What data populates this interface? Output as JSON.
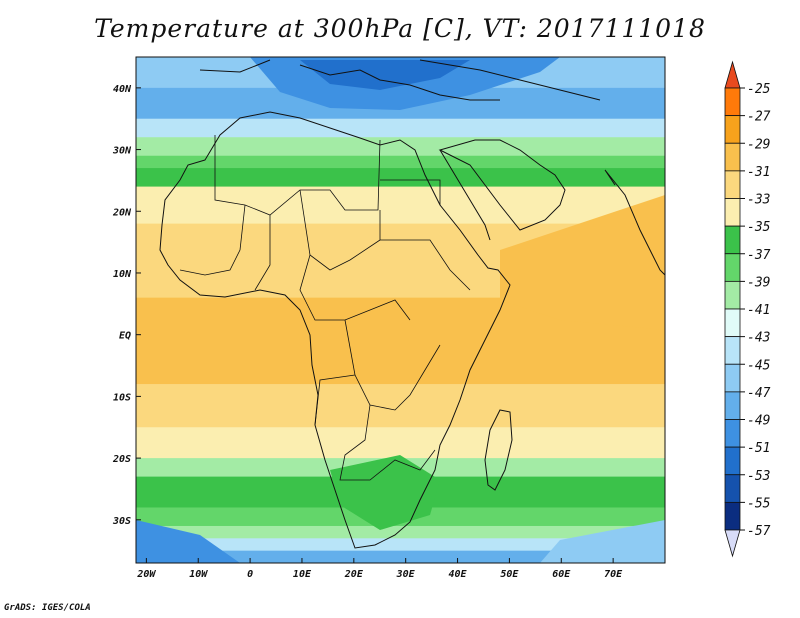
{
  "title": "Temperature at 300hPa [C], VT: 2017111018",
  "credit": "GrADS: IGES/COLA",
  "map": {
    "lon_range": [
      -22,
      80
    ],
    "lat_range": [
      -37,
      45
    ],
    "lon_ticks": [
      {
        "lon": -20,
        "label": "20W"
      },
      {
        "lon": -10,
        "label": "10W"
      },
      {
        "lon": 0,
        "label": "0"
      },
      {
        "lon": 10,
        "label": "10E"
      },
      {
        "lon": 20,
        "label": "20E"
      },
      {
        "lon": 30,
        "label": "30E"
      },
      {
        "lon": 40,
        "label": "40E"
      },
      {
        "lon": 50,
        "label": "50E"
      },
      {
        "lon": 60,
        "label": "60E"
      },
      {
        "lon": 70,
        "label": "70E"
      }
    ],
    "lat_ticks": [
      {
        "lat": 40,
        "label": "40N"
      },
      {
        "lat": 30,
        "label": "30N"
      },
      {
        "lat": 20,
        "label": "20N"
      },
      {
        "lat": 10,
        "label": "10N"
      },
      {
        "lat": 0,
        "label": "EQ"
      },
      {
        "lat": -10,
        "label": "10S"
      },
      {
        "lat": -20,
        "label": "20S"
      },
      {
        "lat": -30,
        "label": "30S"
      }
    ]
  },
  "colorbar": {
    "labels": [
      "-25",
      "-27",
      "-29",
      "-31",
      "-33",
      "-35",
      "-37",
      "-39",
      "-41",
      "-43",
      "-45",
      "-47",
      "-49",
      "-51",
      "-53",
      "-55",
      "-57"
    ],
    "colors": [
      "#e84a1f",
      "#ff7a0a",
      "#f7a21c",
      "#f9c04d",
      "#fbd87e",
      "#fbeeb0",
      "#3bc24a",
      "#63d66a",
      "#a3eba5",
      "#e0fbf8",
      "#b8e4f8",
      "#8ecbf3",
      "#63afeb",
      "#3e91e2",
      "#2170cc",
      "#1552ad",
      "#0b2d80",
      "#0a1a6e",
      "#d8dcf8"
    ]
  },
  "bands": [
    {
      "lat_top": 45,
      "lat_bot": 40,
      "color": "#8ecbf3"
    },
    {
      "lat_top": 40,
      "lat_bot": 35,
      "color": "#63afeb"
    },
    {
      "lat_top": 35,
      "lat_bot": 32,
      "color": "#b8e4f8"
    },
    {
      "lat_top": 32,
      "lat_bot": 29,
      "color": "#a3eba5"
    },
    {
      "lat_top": 29,
      "lat_bot": 27,
      "color": "#63d66a"
    },
    {
      "lat_top": 27,
      "lat_bot": 24,
      "color": "#3bc24a"
    },
    {
      "lat_top": 24,
      "lat_bot": 18,
      "color": "#fbeeb0"
    },
    {
      "lat_top": 18,
      "lat_bot": 6,
      "color": "#fbd87e"
    },
    {
      "lat_top": 6,
      "lat_bot": -8,
      "color": "#f9c04d"
    },
    {
      "lat_top": -8,
      "lat_bot": -15,
      "color": "#fbd87e"
    },
    {
      "lat_top": -15,
      "lat_bot": -20,
      "color": "#fbeeb0"
    },
    {
      "lat_top": -20,
      "lat_bot": -23,
      "color": "#a3eba5"
    },
    {
      "lat_top": -23,
      "lat_bot": -28,
      "color": "#3bc24a"
    },
    {
      "lat_top": -28,
      "lat_bot": -31,
      "color": "#63d66a"
    },
    {
      "lat_top": -31,
      "lat_bot": -33,
      "color": "#a3eba5"
    },
    {
      "lat_top": -33,
      "lat_bot": -35,
      "color": "#b8e4f8"
    },
    {
      "lat_top": -35,
      "lat_bot": -37,
      "color": "#63afeb"
    }
  ]
}
